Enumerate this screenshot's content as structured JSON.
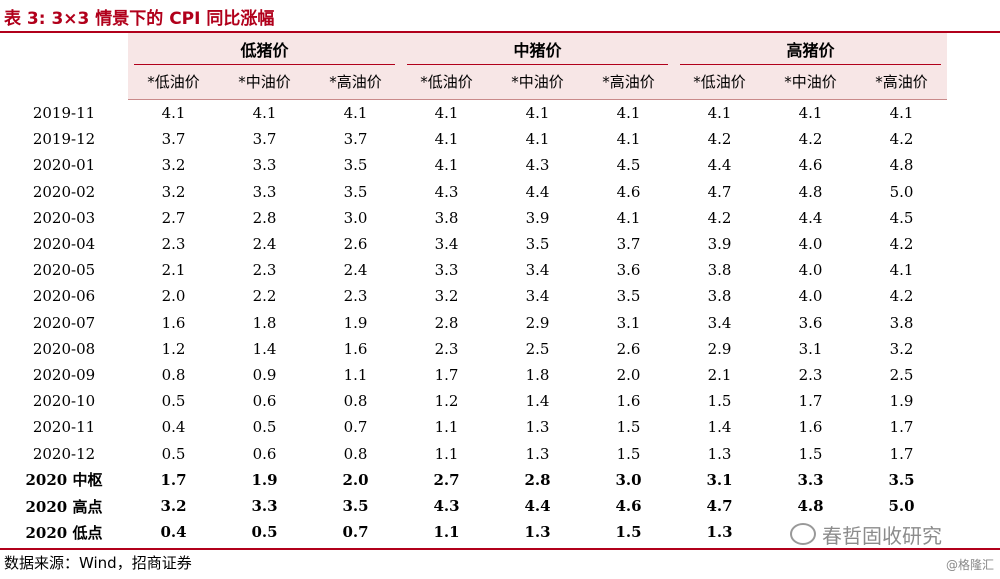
{
  "title": "表 3:  3×3 情景下的 CPI 同比涨幅",
  "groups": [
    "低猪价",
    "中猪价",
    "高猪价"
  ],
  "subheaders": [
    "*低油价",
    "*中油价",
    "*高油价",
    "*低油价",
    "*中油价",
    "*高油价",
    "*低油价",
    "*中油价",
    "*高油价"
  ],
  "rows": [
    {
      "label": "2019-11",
      "values": [
        "4.1",
        "4.1",
        "4.1",
        "4.1",
        "4.1",
        "4.1",
        "4.1",
        "4.1",
        "4.1"
      ]
    },
    {
      "label": "2019-12",
      "values": [
        "3.7",
        "3.7",
        "3.7",
        "4.1",
        "4.1",
        "4.1",
        "4.2",
        "4.2",
        "4.2"
      ]
    },
    {
      "label": "2020-01",
      "values": [
        "3.2",
        "3.3",
        "3.5",
        "4.1",
        "4.3",
        "4.5",
        "4.4",
        "4.6",
        "4.8"
      ]
    },
    {
      "label": "2020-02",
      "values": [
        "3.2",
        "3.3",
        "3.5",
        "4.3",
        "4.4",
        "4.6",
        "4.7",
        "4.8",
        "5.0"
      ]
    },
    {
      "label": "2020-03",
      "values": [
        "2.7",
        "2.8",
        "3.0",
        "3.8",
        "3.9",
        "4.1",
        "4.2",
        "4.4",
        "4.5"
      ]
    },
    {
      "label": "2020-04",
      "values": [
        "2.3",
        "2.4",
        "2.6",
        "3.4",
        "3.5",
        "3.7",
        "3.9",
        "4.0",
        "4.2"
      ]
    },
    {
      "label": "2020-05",
      "values": [
        "2.1",
        "2.3",
        "2.4",
        "3.3",
        "3.4",
        "3.6",
        "3.8",
        "4.0",
        "4.1"
      ]
    },
    {
      "label": "2020-06",
      "values": [
        "2.0",
        "2.2",
        "2.3",
        "3.2",
        "3.4",
        "3.5",
        "3.8",
        "4.0",
        "4.2"
      ]
    },
    {
      "label": "2020-07",
      "values": [
        "1.6",
        "1.8",
        "1.9",
        "2.8",
        "2.9",
        "3.1",
        "3.4",
        "3.6",
        "3.8"
      ]
    },
    {
      "label": "2020-08",
      "values": [
        "1.2",
        "1.4",
        "1.6",
        "2.3",
        "2.5",
        "2.6",
        "2.9",
        "3.1",
        "3.2"
      ]
    },
    {
      "label": "2020-09",
      "values": [
        "0.8",
        "0.9",
        "1.1",
        "1.7",
        "1.8",
        "2.0",
        "2.1",
        "2.3",
        "2.5"
      ]
    },
    {
      "label": "2020-10",
      "values": [
        "0.5",
        "0.6",
        "0.8",
        "1.2",
        "1.4",
        "1.6",
        "1.5",
        "1.7",
        "1.9"
      ]
    },
    {
      "label": "2020-11",
      "values": [
        "0.4",
        "0.5",
        "0.7",
        "1.1",
        "1.3",
        "1.5",
        "1.4",
        "1.6",
        "1.7"
      ]
    },
    {
      "label": "2020-12",
      "values": [
        "0.5",
        "0.6",
        "0.8",
        "1.1",
        "1.3",
        "1.5",
        "1.3",
        "1.5",
        "1.7"
      ]
    }
  ],
  "summary_rows": [
    {
      "label": "2020 中枢",
      "values": [
        "1.7",
        "1.9",
        "2.0",
        "2.7",
        "2.8",
        "3.0",
        "3.1",
        "3.3",
        "3.5"
      ]
    },
    {
      "label": "2020 高点",
      "values": [
        "3.2",
        "3.3",
        "3.5",
        "4.3",
        "4.4",
        "4.6",
        "4.7",
        "4.8",
        "5.0"
      ]
    },
    {
      "label": "2020 低点",
      "values": [
        "0.4",
        "0.5",
        "0.7",
        "1.1",
        "1.3",
        "1.5",
        "1.3",
        "",
        ""
      ]
    }
  ],
  "source": "数据来源：Wind，招商证券",
  "watermark": "春哲固收研究",
  "watermark_small": "@格隆汇",
  "colors": {
    "accent": "#b1001b",
    "header_bg": "#f7e6e6"
  }
}
